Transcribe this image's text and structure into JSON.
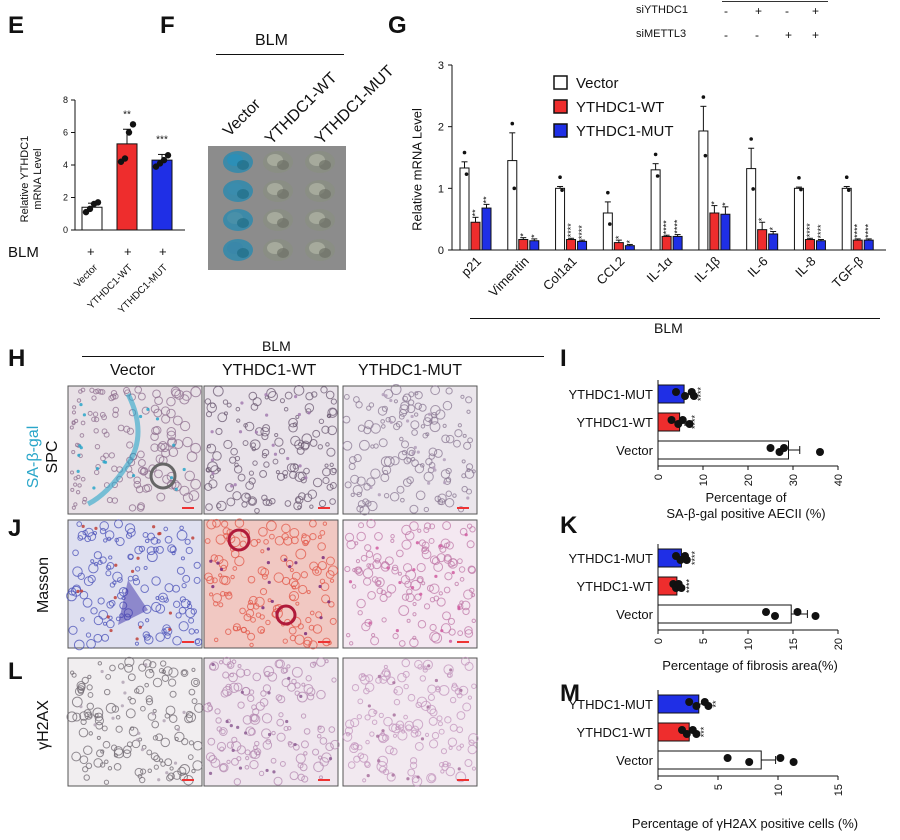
{
  "panels": {
    "E": {
      "letter": "E",
      "ylabel_line1": "Relative YTHDC1",
      "ylabel_line2": "mRNA Level",
      "blm_label": "BLM",
      "plus_signs": [
        "+",
        "+",
        "+"
      ]
    },
    "F": {
      "letter": "F",
      "blm_label": "BLM",
      "columns": [
        "Vector",
        "YTHDC1-WT",
        "YTHDC1-MUT"
      ]
    },
    "G": {
      "letter": "G",
      "ylabel": "Relative mRNA Level",
      "blm_label": "BLM",
      "top_rows": [
        {
          "label": "siYTHDC1",
          "signs": [
            "-",
            "+",
            "-",
            "+"
          ]
        },
        {
          "label": "siMETTL3",
          "signs": [
            "-",
            "-",
            "+",
            "+"
          ]
        }
      ]
    },
    "H": {
      "letter": "H",
      "blm_label": "BLM",
      "columns": [
        "Vector",
        "YTHDC1-WT",
        "YTHDC1-MUT"
      ],
      "row_label_colored": "SA-β-gal",
      "row_label": "SPC"
    },
    "I": {
      "letter": "I",
      "xlabel_line1": "Percentage of",
      "xlabel_line2": "SA-β-gal positive AECII (%)"
    },
    "J": {
      "letter": "J",
      "row_label": "Masson"
    },
    "K": {
      "letter": "K",
      "xlabel": "Percentage of fibrosis area(%)"
    },
    "L": {
      "letter": "L",
      "row_label": "γH2AX"
    },
    "M": {
      "letter": "M",
      "xlabel": "Percentage of γH2AX positive cells  (%)"
    }
  },
  "colors": {
    "vector": "#ffffff",
    "wt": "#ee2d2d",
    "mut": "#1f2fe6",
    "stain_blue": "#2aa6c9",
    "masson_blue": "#4b52b8",
    "masson_red": "#e2584a",
    "he_pink": "#c07aa8"
  },
  "chart_data": [
    {
      "id": "E",
      "type": "bar",
      "categories": [
        "Vector",
        "YTHDC1-WT",
        "YTHDC1-MUT"
      ],
      "values": [
        1.4,
        5.3,
        4.3
      ],
      "errors": [
        0.25,
        0.9,
        0.35
      ],
      "points": [
        [
          1.1,
          1.3,
          1.6,
          1.7
        ],
        [
          4.2,
          4.4,
          6.0,
          6.5
        ],
        [
          3.9,
          4.1,
          4.3,
          4.6
        ]
      ],
      "significance": [
        "",
        "**",
        "***"
      ],
      "ylim": [
        0,
        8
      ],
      "yticks": [
        0,
        2,
        4,
        6,
        8
      ],
      "colors": [
        "#ffffff",
        "#ee2d2d",
        "#1f2fe6"
      ]
    },
    {
      "id": "G",
      "type": "bar",
      "categories": [
        "p21",
        "Vimentin",
        "Col1a1",
        "CCL2",
        "IL-1α",
        "IL-1β",
        "IL-6",
        "IL-8",
        "TGF-β"
      ],
      "legend": [
        "Vector",
        "YTHDC1-WT",
        "YTHDC1-MUT"
      ],
      "legend_position": "top-right",
      "series": [
        {
          "name": "Vector",
          "values": [
            1.33,
            1.45,
            1.0,
            0.6,
            1.3,
            1.93,
            1.32,
            1.0,
            1.0
          ],
          "errors": [
            0.1,
            0.45,
            0.03,
            0.18,
            0.1,
            0.4,
            0.33,
            0.02,
            0.03
          ]
        },
        {
          "name": "YTHDC1-WT",
          "values": [
            0.45,
            0.17,
            0.17,
            0.12,
            0.22,
            0.6,
            0.33,
            0.17,
            0.16
          ],
          "errors": [
            0.08,
            0.03,
            0.02,
            0.04,
            0.02,
            0.12,
            0.12,
            0.02,
            0.02
          ]
        },
        {
          "name": "YTHDC1-MUT",
          "values": [
            0.68,
            0.15,
            0.14,
            0.07,
            0.22,
            0.58,
            0.26,
            0.15,
            0.16
          ],
          "errors": [
            0.06,
            0.03,
            0.02,
            0.02,
            0.03,
            0.12,
            0.04,
            0.02,
            0.02
          ]
        }
      ],
      "significance": [
        [
          "**",
          "**"
        ],
        [
          "*",
          "*"
        ],
        [
          "****",
          "****"
        ],
        [
          "*",
          "*"
        ],
        [
          "****",
          "****"
        ],
        [
          "*",
          "*"
        ],
        [
          "*",
          "*"
        ],
        [
          "****",
          "****"
        ],
        [
          "****",
          "****"
        ]
      ],
      "ylim": [
        0,
        3
      ],
      "yticks": [
        0,
        1,
        2,
        3
      ]
    },
    {
      "id": "I",
      "type": "bar",
      "orientation": "horizontal",
      "categories": [
        "YTHDC1-MUT",
        "YTHDC1-WT",
        "Vector"
      ],
      "values": [
        5.8,
        4.8,
        29
      ],
      "errors": [
        1.5,
        1.2,
        2.5
      ],
      "points": [
        [
          4,
          6,
          7.5,
          8
        ],
        [
          3,
          4.5,
          5.5,
          7
        ],
        [
          25,
          27,
          28,
          36
        ]
      ],
      "significance": [
        "****",
        "****",
        ""
      ],
      "xlim": [
        0,
        40
      ],
      "xticks": [
        0,
        10,
        20,
        30,
        40
      ]
    },
    {
      "id": "K",
      "type": "bar",
      "orientation": "horizontal",
      "categories": [
        "YTHDC1-MUT",
        "YTHDC1-WT",
        "Vector"
      ],
      "values": [
        2.6,
        2.1,
        14.8
      ],
      "errors": [
        0.4,
        0.3,
        1.8
      ],
      "points": [
        [
          2,
          2.5,
          3,
          3.2
        ],
        [
          1.7,
          2,
          2.3,
          2.6
        ],
        [
          12,
          13,
          15.5,
          17.5
        ]
      ],
      "significance": [
        "****",
        "****",
        ""
      ],
      "xlim": [
        0,
        20
      ],
      "xticks": [
        0,
        5,
        10,
        15,
        20
      ]
    },
    {
      "id": "M",
      "type": "bar",
      "orientation": "horizontal",
      "categories": [
        "YTHDC1-MUT",
        "YTHDC1-WT",
        "Vector"
      ],
      "values": [
        3.4,
        2.6,
        8.6
      ],
      "errors": [
        0.6,
        0.4,
        1.2
      ],
      "points": [
        [
          2.6,
          3.2,
          3.9,
          4.2
        ],
        [
          2,
          2.4,
          2.9,
          3.2
        ],
        [
          5.8,
          7.6,
          10.2,
          11.3
        ]
      ],
      "significance": [
        "**",
        "***",
        ""
      ],
      "xlim": [
        0,
        15
      ],
      "xticks": [
        0,
        5,
        10,
        15
      ]
    }
  ]
}
